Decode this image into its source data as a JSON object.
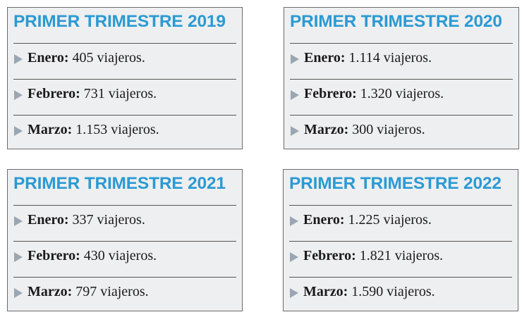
{
  "colors": {
    "title": "#2b9ad3",
    "background": "#eeeff0",
    "arrow": "#9aa7b3"
  },
  "icons": {
    "bullet": "triangle-right-icon"
  },
  "boxes": [
    {
      "title": "PRIMER TRIMESTRE 2019",
      "rows": [
        {
          "month": "Enero:",
          "value": "405 viajeros."
        },
        {
          "month": "Febrero:",
          "value": "731 viajeros."
        },
        {
          "month": "Marzo:",
          "value": "1.153 viajeros."
        }
      ]
    },
    {
      "title": "PRIMER TRIMESTRE 2020",
      "rows": [
        {
          "month": "Enero:",
          "value": "1.114 viajeros."
        },
        {
          "month": "Febrero:",
          "value": "1.320 viajeros."
        },
        {
          "month": "Marzo:",
          "value": "300 viajeros."
        }
      ]
    },
    {
      "title": "PRIMER TRIMESTRE 2021",
      "rows": [
        {
          "month": "Enero:",
          "value": "337 viajeros."
        },
        {
          "month": "Febrero:",
          "value": "430 viajeros."
        },
        {
          "month": "Marzo:",
          "value": "797 viajeros."
        }
      ]
    },
    {
      "title": "PRIMER TRIMESTRE 2022",
      "rows": [
        {
          "month": "Enero:",
          "value": "1.225 viajeros."
        },
        {
          "month": "Febrero:",
          "value": "1.821 viajeros."
        },
        {
          "month": "Marzo:",
          "value": "1.590 viajeros."
        }
      ]
    }
  ]
}
